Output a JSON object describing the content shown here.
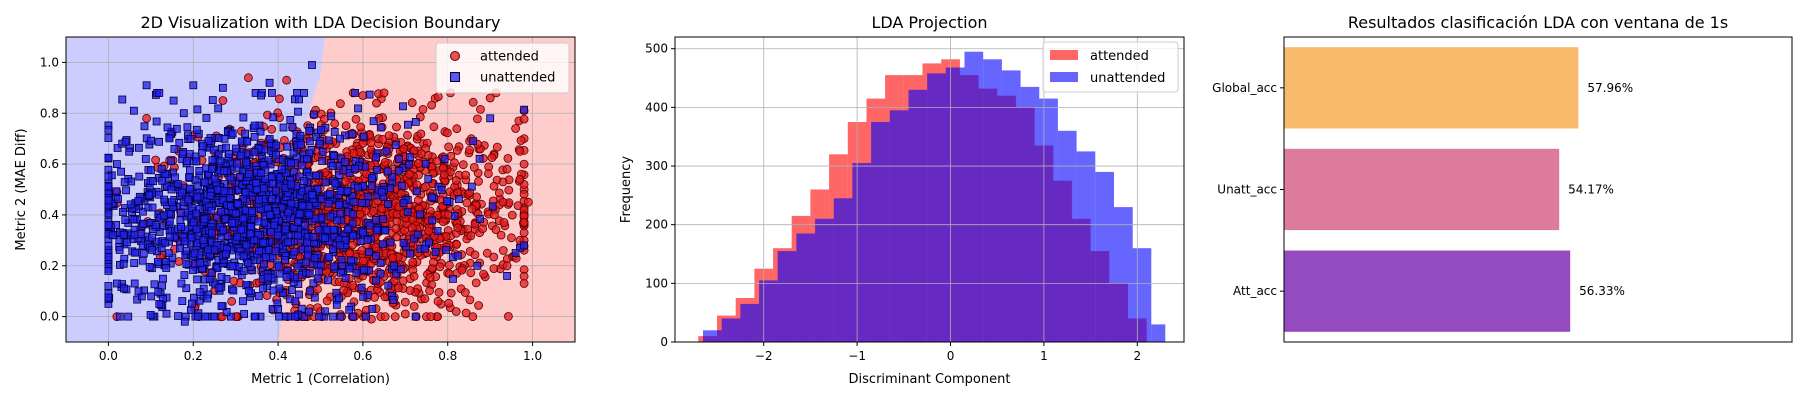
{
  "chart_data": [
    {
      "type": "scatter",
      "title": "2D Visualization with LDA Decision Boundary",
      "xlabel": "Metric 1 (Correlation)",
      "ylabel": "Metric 2 (MAE Diff)",
      "xlim": [
        -0.1,
        1.1
      ],
      "ylim": [
        -0.1,
        1.1
      ],
      "xticks": [
        "0.0",
        "0.2",
        "0.4",
        "0.6",
        "0.8",
        "1.0"
      ],
      "yticks": [
        "0.0",
        "0.2",
        "0.4",
        "0.6",
        "0.8",
        "1.0"
      ],
      "grid": true,
      "legend_placement": "top-right",
      "decision_boundary": {
        "attended_region_color": "#ffcccc",
        "unattended_region_color": "#ccccff",
        "boundary_points": [
          [
            0.51,
            1.1
          ],
          [
            0.5,
            0.95
          ],
          [
            0.47,
            0.8
          ],
          [
            0.45,
            0.6
          ],
          [
            0.43,
            0.4
          ],
          [
            0.42,
            0.2
          ],
          [
            0.41,
            0.0
          ],
          [
            0.4,
            -0.1
          ]
        ]
      },
      "series": [
        {
          "name": "attended",
          "marker": "circle",
          "color": "#e41a1c",
          "edge_color": "#5a0000",
          "cloud": {
            "x_range": [
              0.02,
              0.98
            ],
            "y_range": [
              0.0,
              0.88
            ],
            "x_center": 0.6,
            "count": 1400
          },
          "points": [
            [
              0.42,
              0.93
            ],
            [
              0.6,
              0.87
            ],
            [
              0.65,
              0.88
            ],
            [
              0.9,
              0.86
            ],
            [
              0.98,
              0.81
            ],
            [
              0.96,
              0.74
            ],
            [
              0.97,
              0.65
            ],
            [
              0.98,
              0.6
            ],
            [
              0.97,
              0.54
            ],
            [
              0.94,
              0.58
            ],
            [
              0.99,
              0.45
            ],
            [
              0.93,
              0.45
            ],
            [
              0.91,
              0.4
            ],
            [
              0.98,
              0.37
            ],
            [
              0.98,
              0.33
            ],
            [
              0.97,
              0.3
            ],
            [
              0.95,
              0.31
            ],
            [
              0.94,
              0.2
            ],
            [
              0.98,
              0.13
            ],
            [
              0.55,
              0.0
            ],
            [
              0.62,
              -0.01
            ],
            [
              0.7,
              0.01
            ],
            [
              0.76,
              0.0
            ],
            [
              0.82,
              0.02
            ],
            [
              0.5,
              0.02
            ],
            [
              0.09,
              0.78
            ],
            [
              0.1,
              0.28
            ],
            [
              0.15,
              0.72
            ],
            [
              0.33,
              0.94
            ],
            [
              0.27,
              0.85
            ]
          ]
        },
        {
          "name": "unattended",
          "marker": "square",
          "color": "#2222ee",
          "edge_color": "#00003a",
          "cloud": {
            "x_range": [
              0.0,
              0.98
            ],
            "y_range": [
              0.0,
              0.88
            ],
            "x_center": 0.33,
            "count": 1400
          },
          "points": [
            [
              0.0,
              0.36
            ],
            [
              0.01,
              0.32
            ],
            [
              0.02,
              0.13
            ],
            [
              0.03,
              0.57
            ],
            [
              0.02,
              0.6
            ],
            [
              0.06,
              0.81
            ],
            [
              0.09,
              0.91
            ],
            [
              0.12,
              0.88
            ],
            [
              0.2,
              0.91
            ],
            [
              0.27,
              0.9
            ],
            [
              0.38,
              0.92
            ],
            [
              0.48,
              0.99
            ],
            [
              0.36,
              0.87
            ],
            [
              0.25,
              0.0
            ],
            [
              0.18,
              -0.02
            ],
            [
              0.32,
              0.01
            ],
            [
              0.4,
              0.03
            ],
            [
              0.97,
              0.27
            ],
            [
              0.98,
              0.28
            ],
            [
              0.96,
              0.25
            ],
            [
              0.9,
              0.78
            ],
            [
              0.86,
              0.69
            ],
            [
              0.87,
              0.2
            ],
            [
              0.94,
              0.16
            ],
            [
              0.12,
              0.05
            ]
          ]
        }
      ]
    },
    {
      "type": "histogram",
      "title": "LDA Projection",
      "xlabel": "Discriminant Component",
      "ylabel": "Frequency",
      "xlim": [
        -2.95,
        2.5
      ],
      "ylim": [
        0,
        520
      ],
      "xticks": [
        "−2",
        "−1",
        "0",
        "1",
        "2"
      ],
      "yticks": [
        "0",
        "100",
        "200",
        "300",
        "400",
        "500"
      ],
      "grid": true,
      "legend_placement": "top-right",
      "series": [
        {
          "name": "attended",
          "color": "#ff0000",
          "alpha": 0.6,
          "bin_edges": [
            -2.7,
            -2.5,
            -2.3,
            -2.1,
            -1.9,
            -1.7,
            -1.5,
            -1.3,
            -1.1,
            -0.9,
            -0.7,
            -0.5,
            -0.3,
            -0.1,
            0.1,
            0.3,
            0.5,
            0.7,
            0.9,
            1.1,
            1.3,
            1.5,
            1.7,
            1.9,
            2.1
          ],
          "counts": [
            10,
            45,
            75,
            125,
            160,
            215,
            260,
            320,
            375,
            415,
            455,
            455,
            475,
            482,
            455,
            432,
            420,
            400,
            335,
            275,
            210,
            155,
            100,
            40
          ]
        },
        {
          "name": "unattended",
          "color": "#0000ff",
          "alpha": 0.6,
          "bin_edges": [
            -2.65,
            -2.45,
            -2.25,
            -2.05,
            -1.85,
            -1.65,
            -1.45,
            -1.25,
            -1.05,
            -0.85,
            -0.65,
            -0.45,
            -0.25,
            -0.05,
            0.15,
            0.35,
            0.55,
            0.75,
            0.95,
            1.15,
            1.35,
            1.55,
            1.75,
            1.95,
            2.15,
            2.3
          ],
          "counts": [
            20,
            40,
            65,
            105,
            155,
            185,
            210,
            245,
            305,
            375,
            395,
            430,
            458,
            468,
            495,
            482,
            463,
            435,
            415,
            360,
            325,
            290,
            230,
            160,
            30
          ]
        }
      ]
    },
    {
      "type": "bar",
      "orientation": "horizontal",
      "title": "Resultados clasificación LDA con ventana de 1s",
      "categories": [
        "Global_acc",
        "Unatt_acc",
        "Att_acc"
      ],
      "values": [
        57.96,
        54.17,
        56.33
      ],
      "value_labels": [
        "57.96%",
        "54.17%",
        "56.33%"
      ],
      "colors": [
        "#f8bb6c",
        "#dd7b9c",
        "#944bc0"
      ],
      "xlim": [
        0,
        100
      ],
      "grid": false
    }
  ]
}
